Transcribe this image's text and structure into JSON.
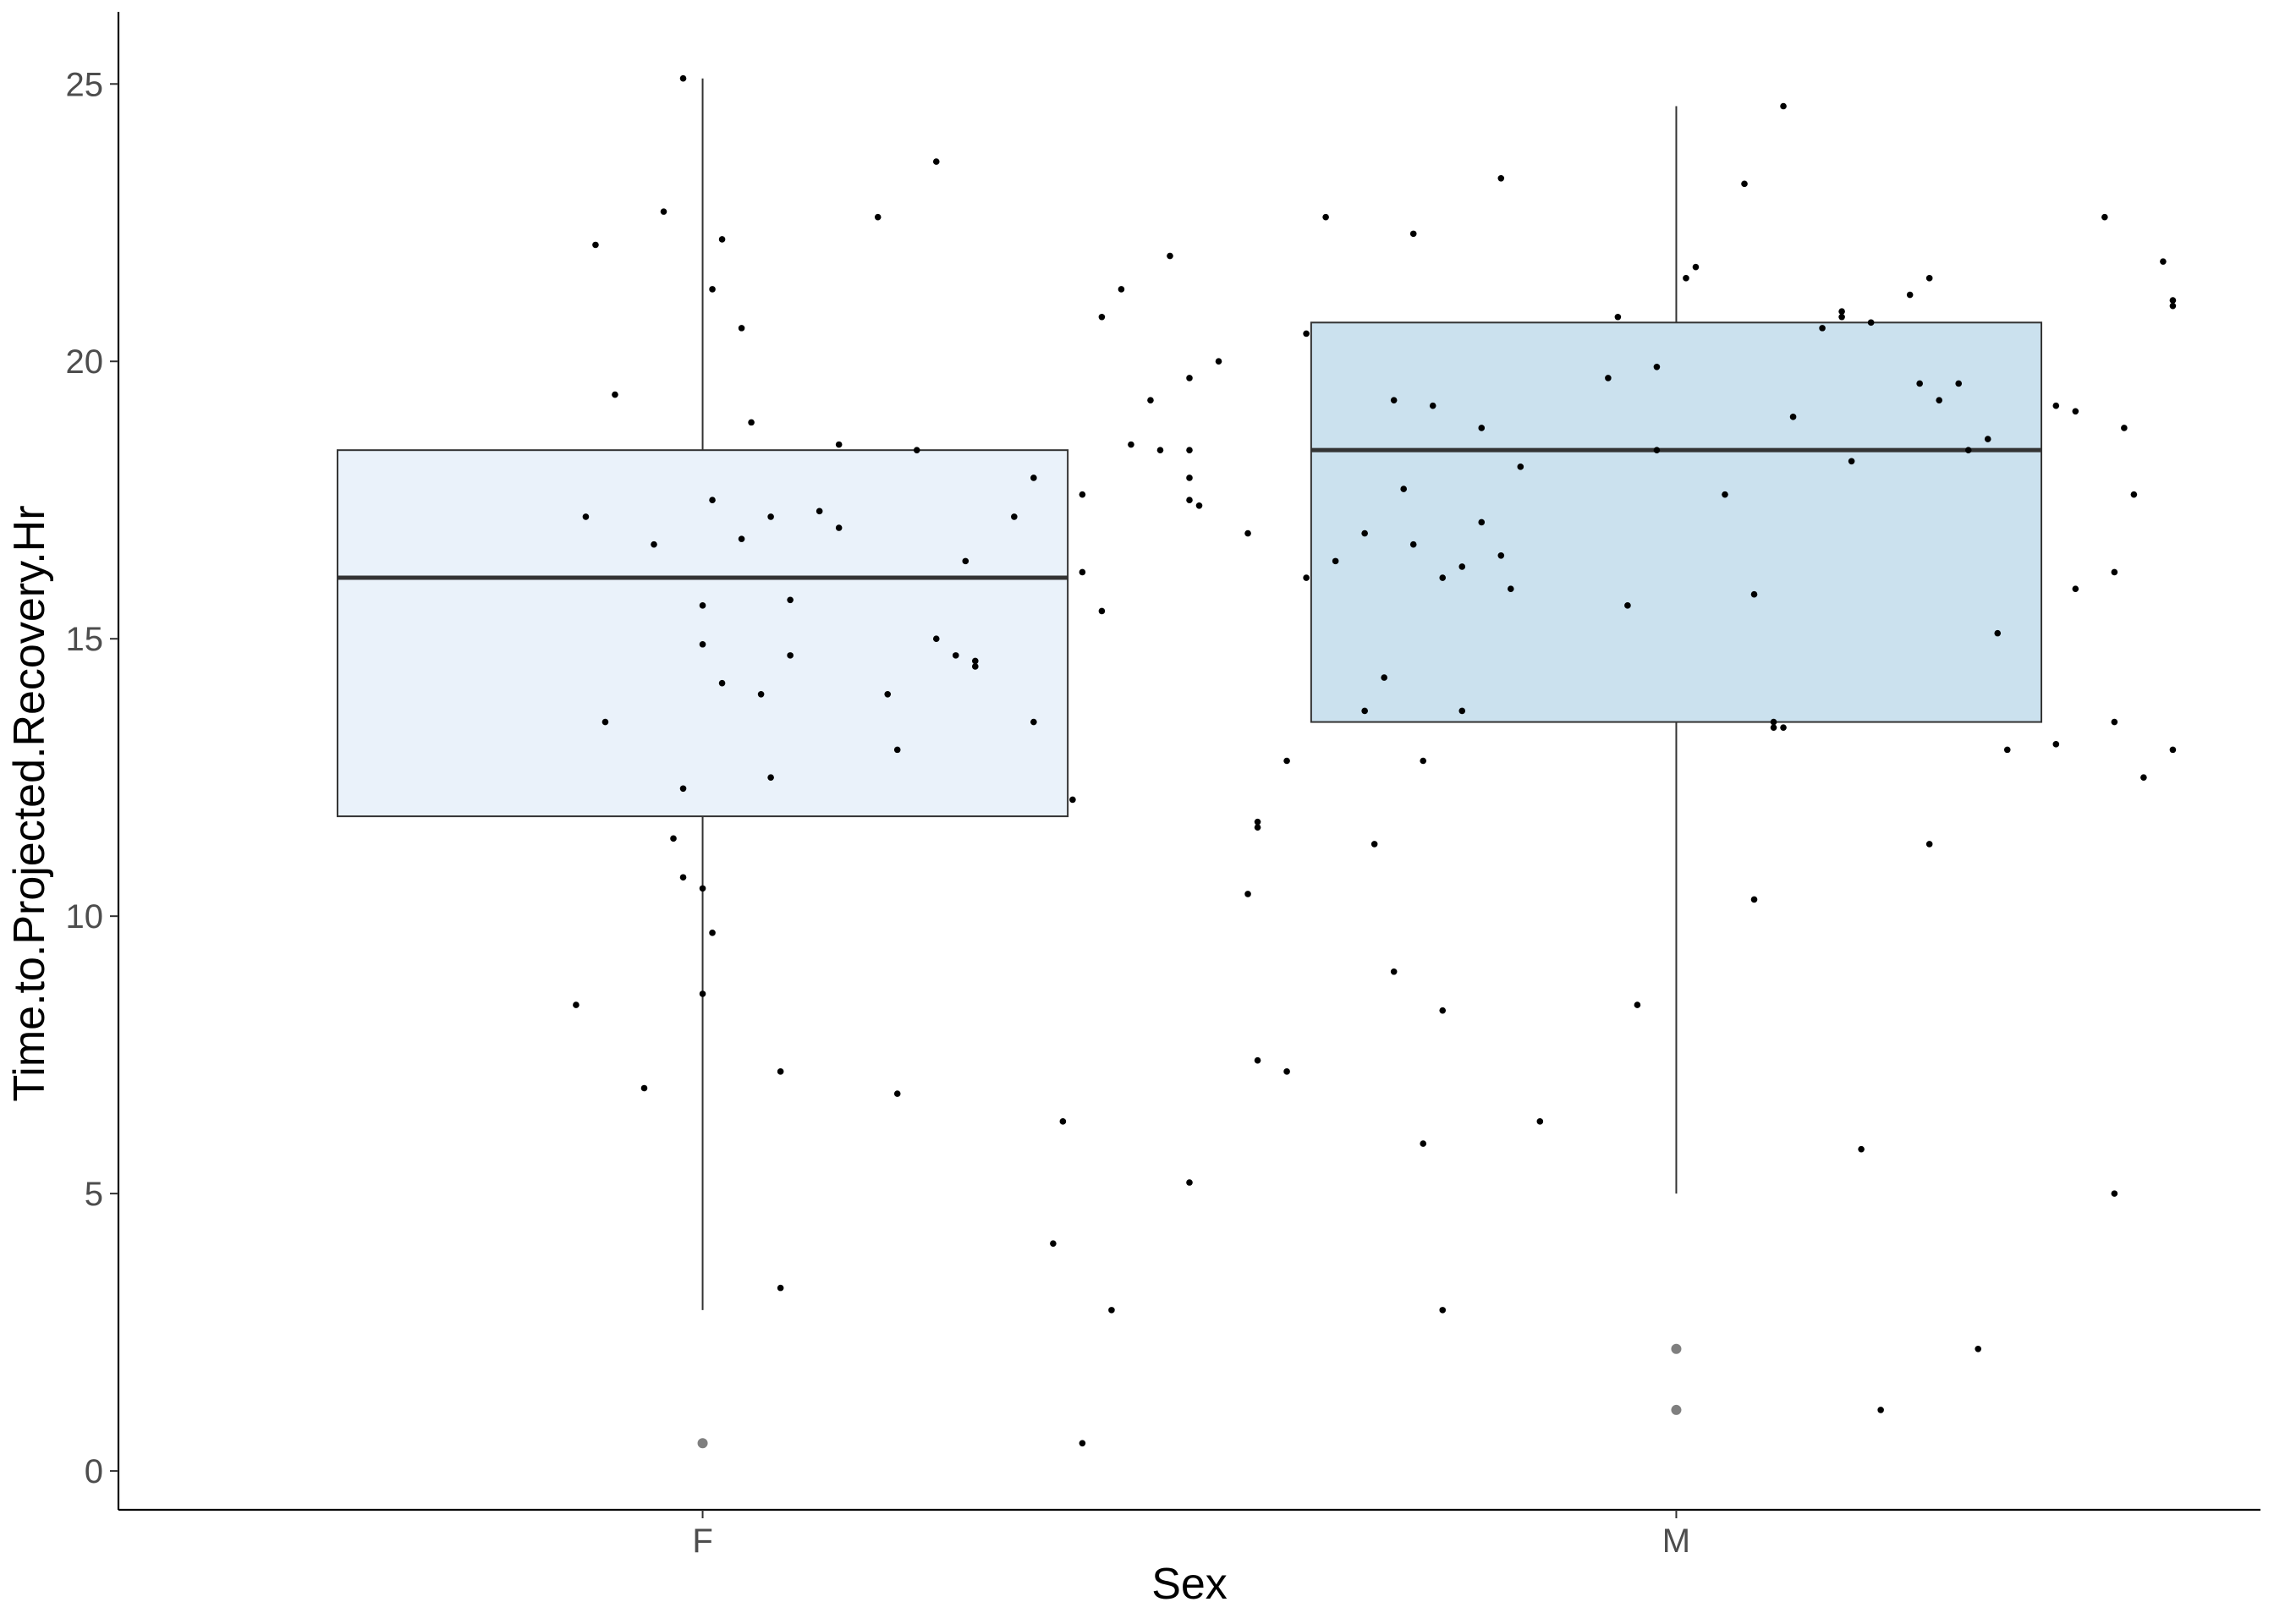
{
  "chart_data": {
    "type": "boxplot",
    "xlabel": "Sex",
    "ylabel": "Time.to.Projected.Recovery.Hr",
    "categories": [
      "F",
      "M"
    ],
    "ylim": [
      -0.7,
      26.3
    ],
    "y_ticks": [
      0,
      5,
      10,
      15,
      20,
      25
    ],
    "grid": false,
    "legend": "none",
    "colors": {
      "F_fill": "#eaf2fa",
      "M_fill": "#cbe1ee",
      "box_stroke": "#333333",
      "median_stroke": "#333333",
      "outlier": "#7f7f7f",
      "points": "#000000",
      "axis": "#000000"
    },
    "boxes": [
      {
        "group": "F",
        "whisker_low": 2.9,
        "q1": 11.8,
        "median": 16.1,
        "q3": 18.4,
        "whisker_high": 25.1,
        "outliers": [
          0.5
        ]
      },
      {
        "group": "M",
        "whisker_low": 5.0,
        "q1": 13.5,
        "median": 18.4,
        "q3": 20.7,
        "whisker_high": 24.6,
        "outliers": [
          2.2,
          1.1
        ]
      }
    ],
    "points": [
      {
        "group": "F",
        "x": 0.89,
        "y": 22.1
      },
      {
        "group": "F",
        "x": 0.9,
        "y": 13.5
      },
      {
        "group": "F",
        "x": 0.88,
        "y": 17.2
      },
      {
        "group": "F",
        "x": 0.87,
        "y": 8.4
      },
      {
        "group": "F",
        "x": 0.91,
        "y": 19.4
      },
      {
        "group": "F",
        "x": 0.94,
        "y": 6.9
      },
      {
        "group": "F",
        "x": 0.96,
        "y": 22.7
      },
      {
        "group": "F",
        "x": 0.98,
        "y": 25.1
      },
      {
        "group": "F",
        "x": 0.95,
        "y": 16.7
      },
      {
        "group": "F",
        "x": 0.97,
        "y": 11.4
      },
      {
        "group": "F",
        "x": 0.98,
        "y": 10.7
      },
      {
        "group": "F",
        "x": 0.98,
        "y": 12.3
      },
      {
        "group": "F",
        "x": 1.0,
        "y": 15.6
      },
      {
        "group": "F",
        "x": 1.0,
        "y": 14.9
      },
      {
        "group": "F",
        "x": 1.0,
        "y": 10.5
      },
      {
        "group": "F",
        "x": 1.01,
        "y": 21.3
      },
      {
        "group": "F",
        "x": 1.01,
        "y": 17.5
      },
      {
        "group": "F",
        "x": 1.01,
        "y": 9.7
      },
      {
        "group": "F",
        "x": 1.02,
        "y": 14.2
      },
      {
        "group": "F",
        "x": 1.0,
        "y": 8.6
      },
      {
        "group": "F",
        "x": 1.02,
        "y": 22.2
      },
      {
        "group": "F",
        "x": 1.04,
        "y": 20.6
      },
      {
        "group": "F",
        "x": 1.04,
        "y": 16.8
      },
      {
        "group": "F",
        "x": 1.05,
        "y": 18.9
      },
      {
        "group": "F",
        "x": 1.06,
        "y": 14.0
      },
      {
        "group": "F",
        "x": 1.07,
        "y": 12.5
      },
      {
        "group": "F",
        "x": 1.07,
        "y": 17.2
      },
      {
        "group": "F",
        "x": 1.08,
        "y": 7.2
      },
      {
        "group": "F",
        "x": 1.08,
        "y": 3.3
      },
      {
        "group": "F",
        "x": 1.09,
        "y": 15.7
      },
      {
        "group": "F",
        "x": 1.09,
        "y": 14.7
      },
      {
        "group": "F",
        "x": 1.12,
        "y": 17.3
      },
      {
        "group": "F",
        "x": 1.14,
        "y": 18.5
      },
      {
        "group": "F",
        "x": 1.14,
        "y": 17.0
      },
      {
        "group": "F",
        "x": 1.18,
        "y": 22.6
      },
      {
        "group": "F",
        "x": 1.19,
        "y": 14.0
      },
      {
        "group": "F",
        "x": 1.2,
        "y": 13.0
      },
      {
        "group": "F",
        "x": 1.2,
        "y": 6.8
      },
      {
        "group": "F",
        "x": 1.22,
        "y": 18.4
      },
      {
        "group": "F",
        "x": 1.24,
        "y": 23.6
      },
      {
        "group": "F",
        "x": 1.24,
        "y": 15.0
      },
      {
        "group": "F",
        "x": 1.27,
        "y": 16.4
      },
      {
        "group": "F",
        "x": 1.26,
        "y": 14.7
      },
      {
        "group": "F",
        "x": 1.28,
        "y": 14.5
      },
      {
        "group": "F",
        "x": 1.28,
        "y": 14.6
      },
      {
        "group": "F",
        "x": 1.32,
        "y": 17.2
      },
      {
        "group": "F",
        "x": 1.34,
        "y": 17.9
      },
      {
        "group": "F",
        "x": 1.34,
        "y": 13.5
      },
      {
        "group": "F",
        "x": 1.37,
        "y": 6.3
      },
      {
        "group": "F",
        "x": 1.36,
        "y": 4.1
      },
      {
        "group": "F",
        "x": 1.38,
        "y": 12.1
      },
      {
        "group": "F",
        "x": 1.39,
        "y": 17.6
      },
      {
        "group": "F",
        "x": 1.39,
        "y": 16.2
      },
      {
        "group": "F",
        "x": 1.41,
        "y": 15.5
      },
      {
        "group": "F",
        "x": 1.41,
        "y": 20.8
      },
      {
        "group": "F",
        "x": 1.42,
        "y": 2.9
      },
      {
        "group": "F",
        "x": 1.43,
        "y": 21.3
      },
      {
        "group": "F",
        "x": 1.44,
        "y": 18.5
      },
      {
        "group": "F",
        "x": 1.46,
        "y": 19.3
      },
      {
        "group": "F",
        "x": 1.47,
        "y": 18.4
      },
      {
        "group": "F",
        "x": 1.48,
        "y": 21.9
      },
      {
        "group": "F",
        "x": 1.5,
        "y": 5.2
      },
      {
        "group": "F",
        "x": 1.5,
        "y": 19.7
      },
      {
        "group": "F",
        "x": 1.5,
        "y": 18.4
      },
      {
        "group": "F",
        "x": 1.5,
        "y": 17.5
      },
      {
        "group": "F",
        "x": 1.5,
        "y": 17.9
      },
      {
        "group": "F",
        "x": 1.51,
        "y": 17.4
      },
      {
        "group": "F",
        "x": 1.53,
        "y": 20.0
      },
      {
        "group": "F",
        "x": 1.56,
        "y": 16.9
      },
      {
        "group": "F",
        "x": 1.56,
        "y": 10.4
      },
      {
        "group": "F",
        "x": 1.57,
        "y": 11.7
      },
      {
        "group": "F",
        "x": 1.57,
        "y": 11.6
      },
      {
        "group": "F",
        "x": 1.57,
        "y": 7.4
      },
      {
        "group": "F",
        "x": 1.6,
        "y": 7.2
      },
      {
        "group": "F",
        "x": 1.6,
        "y": 12.8
      },
      {
        "group": "F",
        "x": 1.62,
        "y": 20.5
      },
      {
        "group": "F",
        "x": 1.62,
        "y": 16.1
      },
      {
        "group": "F",
        "x": 1.64,
        "y": 22.6
      },
      {
        "group": "F",
        "x": 1.65,
        "y": 16.4
      },
      {
        "group": "F",
        "x": 1.68,
        "y": 16.9
      },
      {
        "group": "F",
        "x": 1.68,
        "y": 13.7
      },
      {
        "group": "F",
        "x": 1.69,
        "y": 11.3
      },
      {
        "group": "F",
        "x": 1.7,
        "y": 14.3
      },
      {
        "group": "F",
        "x": 1.71,
        "y": 19.3
      },
      {
        "group": "F",
        "x": 1.71,
        "y": 9.0
      },
      {
        "group": "F",
        "x": 1.72,
        "y": 17.7
      },
      {
        "group": "F",
        "x": 1.73,
        "y": 16.7
      },
      {
        "group": "F",
        "x": 1.73,
        "y": 22.3
      },
      {
        "group": "F",
        "x": 1.74,
        "y": 12.8
      },
      {
        "group": "F",
        "x": 1.74,
        "y": 5.9
      },
      {
        "group": "F",
        "x": 1.75,
        "y": 19.2
      },
      {
        "group": "F",
        "x": 1.76,
        "y": 16.1
      },
      {
        "group": "F",
        "x": 1.76,
        "y": 8.3
      },
      {
        "group": "F",
        "x": 1.78,
        "y": 13.7
      },
      {
        "group": "F",
        "x": 1.78,
        "y": 16.3
      },
      {
        "group": "F",
        "x": 1.8,
        "y": 17.1
      },
      {
        "group": "F",
        "x": 1.76,
        "y": 2.9
      },
      {
        "group": "F",
        "x": 1.39,
        "y": 0.5
      },
      {
        "group": "M",
        "x": 1.8,
        "y": 18.8
      },
      {
        "group": "M",
        "x": 1.82,
        "y": 16.5
      },
      {
        "group": "M",
        "x": 1.82,
        "y": 23.3
      },
      {
        "group": "M",
        "x": 1.83,
        "y": 15.9
      },
      {
        "group": "M",
        "x": 1.84,
        "y": 18.1
      },
      {
        "group": "M",
        "x": 1.86,
        "y": 6.3
      },
      {
        "group": "M",
        "x": 1.93,
        "y": 19.7
      },
      {
        "group": "M",
        "x": 1.94,
        "y": 20.8
      },
      {
        "group": "M",
        "x": 1.95,
        "y": 15.6
      },
      {
        "group": "M",
        "x": 1.96,
        "y": 8.4
      },
      {
        "group": "M",
        "x": 1.98,
        "y": 19.9
      },
      {
        "group": "M",
        "x": 1.98,
        "y": 18.4
      },
      {
        "group": "M",
        "x": 2.01,
        "y": 21.5
      },
      {
        "group": "M",
        "x": 2.02,
        "y": 21.7
      },
      {
        "group": "M",
        "x": 2.05,
        "y": 17.6
      },
      {
        "group": "M",
        "x": 2.07,
        "y": 23.2
      },
      {
        "group": "M",
        "x": 2.08,
        "y": 15.8
      },
      {
        "group": "M",
        "x": 2.08,
        "y": 10.3
      },
      {
        "group": "M",
        "x": 2.1,
        "y": 13.4
      },
      {
        "group": "M",
        "x": 2.1,
        "y": 13.5
      },
      {
        "group": "M",
        "x": 2.11,
        "y": 13.4
      },
      {
        "group": "M",
        "x": 2.11,
        "y": 24.6
      },
      {
        "group": "M",
        "x": 2.12,
        "y": 19.0
      },
      {
        "group": "M",
        "x": 2.15,
        "y": 20.6
      },
      {
        "group": "M",
        "x": 2.17,
        "y": 20.8
      },
      {
        "group": "M",
        "x": 2.17,
        "y": 20.9
      },
      {
        "group": "M",
        "x": 2.18,
        "y": 18.2
      },
      {
        "group": "M",
        "x": 2.19,
        "y": 5.8
      },
      {
        "group": "M",
        "x": 2.2,
        "y": 20.7
      },
      {
        "group": "M",
        "x": 2.21,
        "y": 1.1
      },
      {
        "group": "M",
        "x": 2.24,
        "y": 21.2
      },
      {
        "group": "M",
        "x": 2.25,
        "y": 19.6
      },
      {
        "group": "M",
        "x": 2.26,
        "y": 21.5
      },
      {
        "group": "M",
        "x": 2.26,
        "y": 11.3
      },
      {
        "group": "M",
        "x": 2.27,
        "y": 19.3
      },
      {
        "group": "M",
        "x": 2.29,
        "y": 19.6
      },
      {
        "group": "M",
        "x": 2.3,
        "y": 18.4
      },
      {
        "group": "M",
        "x": 2.31,
        "y": 2.2
      },
      {
        "group": "M",
        "x": 2.32,
        "y": 18.6
      },
      {
        "group": "M",
        "x": 2.33,
        "y": 15.1
      },
      {
        "group": "M",
        "x": 2.34,
        "y": 13.0
      },
      {
        "group": "M",
        "x": 2.39,
        "y": 13.1
      },
      {
        "group": "M",
        "x": 2.39,
        "y": 19.2
      },
      {
        "group": "M",
        "x": 2.41,
        "y": 19.1
      },
      {
        "group": "M",
        "x": 2.41,
        "y": 15.9
      },
      {
        "group": "M",
        "x": 2.44,
        "y": 22.6
      },
      {
        "group": "M",
        "x": 2.45,
        "y": 16.2
      },
      {
        "group": "M",
        "x": 2.45,
        "y": 13.5
      },
      {
        "group": "M",
        "x": 2.45,
        "y": 5.0
      },
      {
        "group": "M",
        "x": 2.46,
        "y": 18.8
      },
      {
        "group": "M",
        "x": 2.47,
        "y": 17.6
      },
      {
        "group": "M",
        "x": 2.48,
        "y": 12.5
      },
      {
        "group": "M",
        "x": 2.5,
        "y": 21.8
      },
      {
        "group": "M",
        "x": 2.51,
        "y": 21.1
      },
      {
        "group": "M",
        "x": 2.51,
        "y": 21.0
      },
      {
        "group": "M",
        "x": 2.51,
        "y": 13.0
      }
    ]
  }
}
